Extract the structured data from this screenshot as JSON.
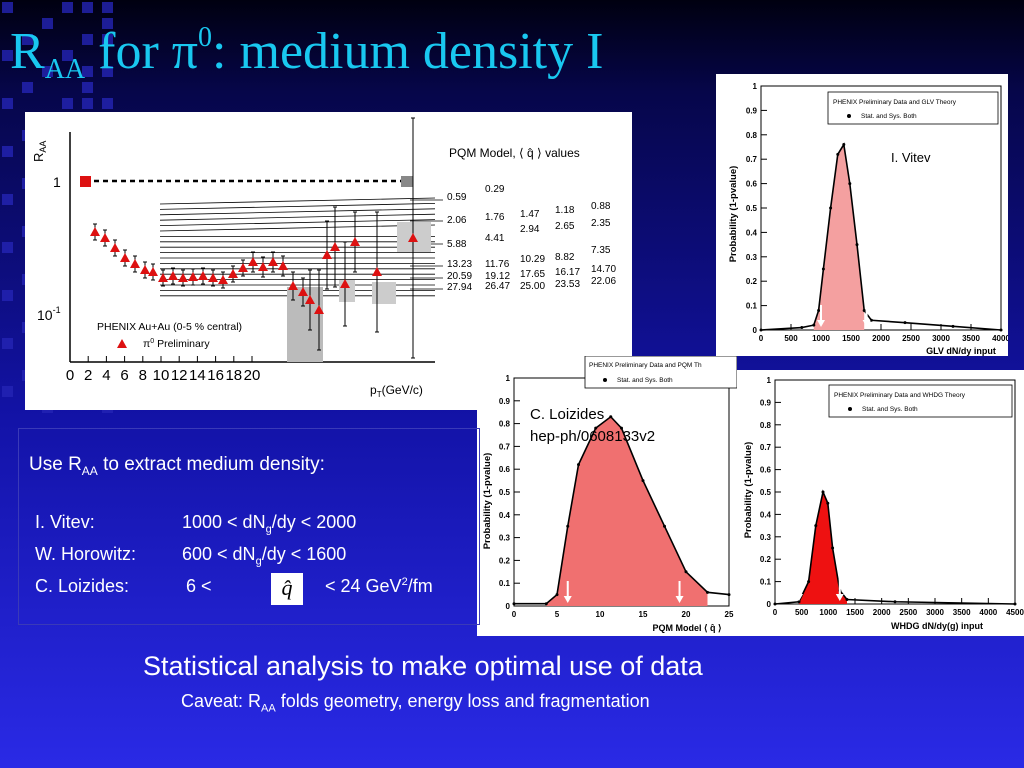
{
  "slide": {
    "title_prefix": "R",
    "title_sub": "AA",
    "title_for": " for ",
    "title_pi": "π",
    "title_sup": "0",
    "title_rest": ": medium density I"
  },
  "main_plot": {
    "y_axis_label": "R",
    "y_axis_label_sub": "AA",
    "y_tick_1": "1",
    "y_tick_2": "10",
    "y_tick_2_sup": "-1",
    "x_tick_labels": [
      "0",
      "2",
      "4",
      "6",
      "8",
      "10",
      "12",
      "14",
      "16",
      "18",
      "20"
    ],
    "x_axis_label": "p",
    "x_axis_label_sub": "T",
    "x_axis_unit": "(GeV/c)",
    "model_header": "PQM Model, ",
    "model_header_q": "⟨ q̂ ⟩",
    "model_header_tail": " values",
    "left_values": [
      "0.59",
      "2.06",
      "5.88",
      "13.23",
      "20.59",
      "27.94"
    ],
    "col2_values": [
      "0.29",
      "1.76",
      "4.41",
      "11.76",
      "19.12",
      "26.47"
    ],
    "col3_values": [
      "1.47",
      "2.94",
      "10.29",
      "17.65",
      "25.00"
    ],
    "col4_values": [
      "1.18",
      "2.65",
      "8.82",
      "16.17",
      "23.53"
    ],
    "col5_values": [
      "0.88",
      "2.35",
      "7.35",
      "14.70",
      "22.06"
    ],
    "legend_line1": "PHENIX Au+Au (0-5 % central)",
    "legend_line2": "π",
    "legend_line2_sup": "0",
    "legend_line2_tail": " Preliminary"
  },
  "vitev_plot": {
    "y_label": "Probability (1-pvalue)",
    "y_ticks": [
      "0",
      "0.1",
      "0.2",
      "0.3",
      "0.4",
      "0.5",
      "0.6",
      "0.7",
      "0.8",
      "0.9",
      "1"
    ],
    "x_ticks": [
      "0",
      "500",
      "1000",
      "1500",
      "2000",
      "2500",
      "3000",
      "3500",
      "4000"
    ],
    "x_label": "GLV dN/dy input",
    "legend_title": "PHENIX Preliminary Data and GLV Theory",
    "legend_entry": "Stat. and Sys. Both",
    "annotation": "I. Vitev"
  },
  "loizides_plot": {
    "y_label": "Probability (1-pvalue)",
    "y_ticks": [
      "0",
      "0.1",
      "0.2",
      "0.3",
      "0.4",
      "0.5",
      "0.6",
      "0.7",
      "0.8",
      "0.9",
      "1"
    ],
    "x_ticks": [
      "0",
      "5",
      "10",
      "15",
      "20",
      "25"
    ],
    "x_label": "PQM Model ⟨ q̂ ⟩",
    "legend_title": "PHENIX Preliminary Data and PQM Th",
    "legend_entry": "Stat. and Sys. Both",
    "annotation_line1": "C. Loizides",
    "annotation_line2": "hep-ph/0608133v2"
  },
  "whdg_plot": {
    "y_label": "Probability (1-pvalue)",
    "y_ticks": [
      "0",
      "0.1",
      "0.2",
      "0.3",
      "0.4",
      "0.5",
      "0.6",
      "0.7",
      "0.8",
      "0.9",
      "1"
    ],
    "x_ticks": [
      "0",
      "500",
      "1000",
      "1500",
      "2000",
      "2500",
      "3000",
      "3500",
      "4000",
      "4500"
    ],
    "x_label": "WHDG  dN/dy(g) input",
    "legend_title": "PHENIX Preliminary Data and WHDG Theory",
    "legend_entry": "Stat. and Sys. Both"
  },
  "textbox": {
    "heading_pre": "Use R",
    "heading_sub": "AA",
    "heading_post": " to extract medium density:",
    "row1_name": "I. Vitev:",
    "row1_value_pre": "1000 < dN",
    "row1_value_sub": "g",
    "row1_value_post": "/dy < 2000",
    "row2_name": "W. Horowitz:",
    "row2_value_pre": "600  < dN",
    "row2_value_sub": "g",
    "row2_value_post": "/dy < 1600",
    "row3_name": "C. Loizides:",
    "row3_value_pre": "6      <",
    "row3_qhat": "q̂",
    "row3_value_post": "< 24 GeV",
    "row3_value_sup": "2",
    "row3_value_tail": "/fm"
  },
  "bottom": {
    "line1": "Statistical analysis to make optimal use of data",
    "caveat_pre": "Caveat: R",
    "caveat_sub": "AA",
    "caveat_post": " folds geometry, energy loss and fragmentation"
  },
  "colors": {
    "title": "#19c8f0",
    "background_top": "#000010",
    "background_bottom": "#2a2ae6",
    "marker_red": "#dd1111",
    "fill_pink": "#f07070"
  }
}
